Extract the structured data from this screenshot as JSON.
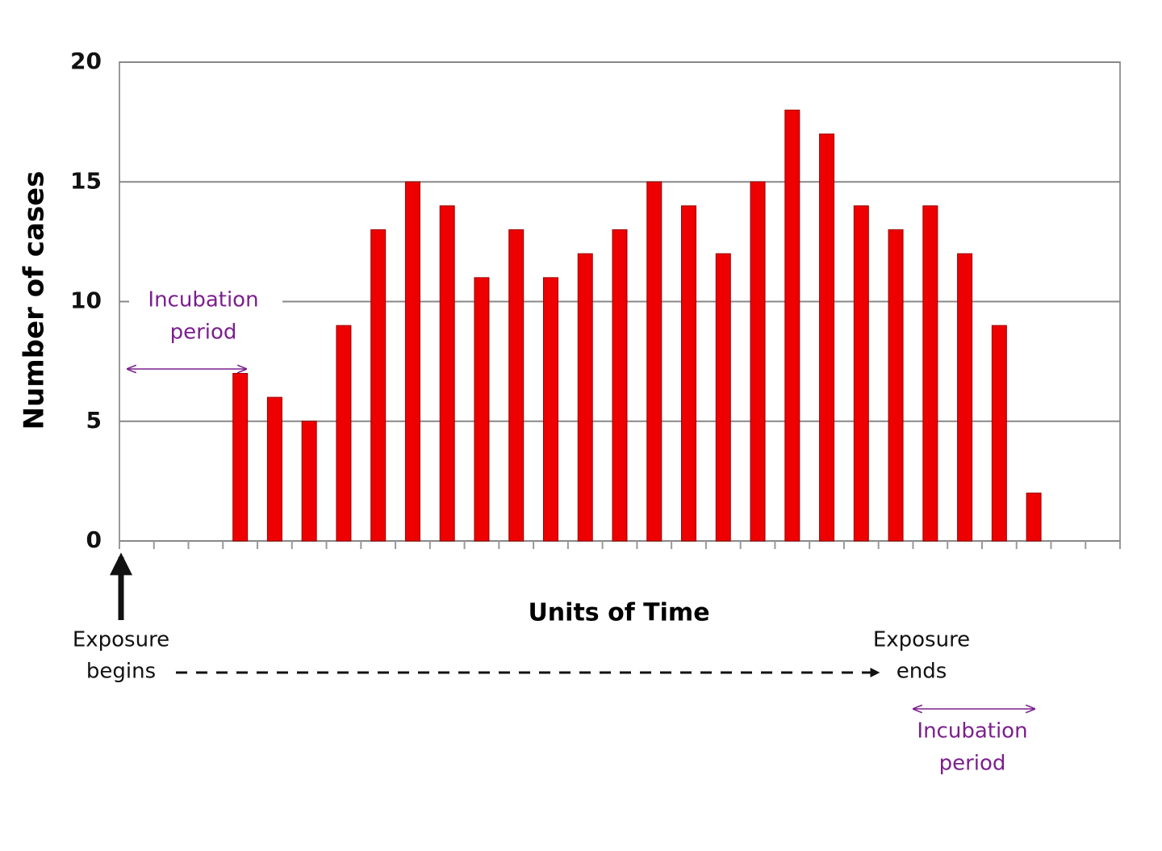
{
  "chart_data": {
    "type": "bar",
    "y_label": "Number of cases",
    "x_label": "Units of Time",
    "categories": [
      null,
      null,
      null,
      null,
      null,
      null,
      null,
      null,
      null,
      null,
      null,
      null,
      null,
      null,
      null,
      null,
      null,
      null,
      null,
      null,
      null,
      null,
      null,
      null,
      null,
      null,
      null,
      null,
      null
    ],
    "values": [
      null,
      null,
      null,
      7,
      6,
      5,
      9,
      13,
      15,
      14,
      11,
      13,
      11,
      12,
      13,
      15,
      14,
      12,
      15,
      18,
      17,
      14,
      13,
      14,
      12,
      9,
      2,
      null,
      null
    ],
    "color": "#ee0000",
    "ylim": [
      0,
      20
    ],
    "yticks": [
      0,
      5,
      10,
      15,
      20
    ],
    "grid": true,
    "annotations": [
      {
        "lines": [
          "Incubation",
          "period"
        ],
        "color": "#7b1f8e"
      },
      {
        "lines": [
          "Exposure",
          "begins"
        ],
        "color": "#111111"
      },
      {
        "lines": [
          "Exposure",
          "ends"
        ],
        "color": "#111111"
      },
      {
        "lines": [
          "Incubation",
          "period"
        ],
        "color": "#7b1f8e"
      }
    ]
  }
}
